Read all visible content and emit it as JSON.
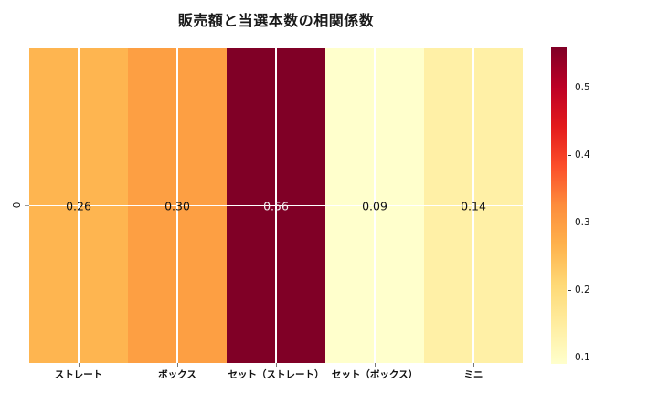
{
  "chart_data": {
    "type": "heatmap",
    "title": "販売額と当選本数の相関係数",
    "categories": [
      "ストレート",
      "ボックス",
      "セット（ストレート）",
      "セット（ボックス）",
      "ミニ"
    ],
    "row_labels": [
      "0"
    ],
    "values": [
      [
        0.26,
        0.3,
        0.56,
        0.09,
        0.14
      ]
    ],
    "cells": [
      {
        "label": "0.26",
        "bg": "#feb550",
        "fg": "#111111"
      },
      {
        "label": "0.30",
        "bg": "#fd9f43",
        "fg": "#111111"
      },
      {
        "label": "0.56",
        "bg": "#800026",
        "fg": "#f2f2f2"
      },
      {
        "label": "0.09",
        "bg": "#ffffcc",
        "fg": "#111111"
      },
      {
        "label": "0.14",
        "bg": "#fff0a6",
        "fg": "#111111"
      }
    ],
    "colormap": "YlOrRd",
    "vmin": 0.09,
    "vmax": 0.56,
    "grid_color": "#ffffff",
    "background": "#ffffff",
    "colorbar": {
      "position": "right",
      "ticks": [
        0.5,
        0.4,
        0.3,
        0.2,
        0.1
      ],
      "tick_labels": [
        "0.5",
        "0.4",
        "0.3",
        "0.2",
        "0.1"
      ],
      "gradient_top_to_bottom": [
        "#800026",
        "#bd0026",
        "#e31a1c",
        "#fc4e2a",
        "#fd8d3c",
        "#feb24c",
        "#fed976",
        "#ffeda0",
        "#ffffcc"
      ]
    }
  }
}
